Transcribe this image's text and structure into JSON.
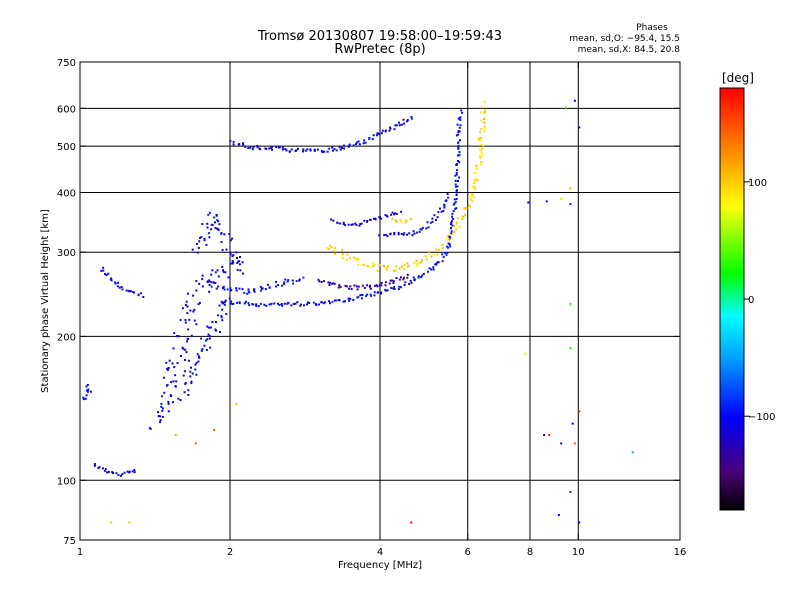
{
  "chart_data": {
    "type": "scatter",
    "title": "Tromsø 20130807 19:58:00–19:59:43",
    "subtitle": "RwPretec (8p)",
    "xlabel": "Frequency [MHz]",
    "ylabel": "Stationary phase Virtual Height [km]",
    "x_scale": "log",
    "y_scale": "log",
    "xlim": [
      1,
      16
    ],
    "ylim": [
      75,
      750
    ],
    "x_ticks": [
      1,
      2,
      4,
      6,
      8,
      10,
      16
    ],
    "y_ticks": [
      75,
      100,
      200,
      300,
      400,
      500,
      600,
      750
    ],
    "grid_x": [
      2,
      4,
      6,
      8,
      10
    ],
    "grid_y": [
      100,
      200,
      300,
      400,
      500,
      600
    ],
    "grid": true,
    "stats": {
      "heading": "Phases",
      "line1": "mean, sd,O: −95.4, 15.5",
      "line2": "mean, sd,X:  84.5, 20.8"
    },
    "colorbar": {
      "label": "[deg]",
      "range": [
        -180,
        180
      ],
      "ticks": [
        100,
        0,
        -100
      ],
      "tick_labels": [
        "100",
        "0",
        "−100"
      ]
    },
    "series_description": "points colored by phase (deg)",
    "traces": [
      {
        "phase": -105,
        "spread": 2,
        "points": [
          [
            1.01,
            148
          ],
          [
            1.02,
            152
          ],
          [
            1.04,
            155
          ],
          [
            1.02,
            160
          ]
        ]
      },
      {
        "phase": -105,
        "spread": 2,
        "points": [
          [
            1.06,
            108
          ],
          [
            1.1,
            106
          ],
          [
            1.15,
            104
          ],
          [
            1.2,
            103
          ],
          [
            1.25,
            105
          ],
          [
            1.3,
            106
          ]
        ]
      },
      {
        "phase": -105,
        "spread": 2,
        "points": [
          [
            1.1,
            280
          ],
          [
            1.15,
            265
          ],
          [
            1.2,
            255
          ],
          [
            1.25,
            248
          ],
          [
            1.3,
            246
          ],
          [
            1.35,
            245
          ]
        ]
      },
      {
        "phase": -105,
        "spread": 8,
        "points": [
          [
            1.4,
            130
          ],
          [
            1.45,
            140
          ],
          [
            1.5,
            160
          ],
          [
            1.55,
            180
          ],
          [
            1.6,
            200
          ],
          [
            1.65,
            220
          ],
          [
            1.7,
            240
          ],
          [
            1.75,
            255
          ],
          [
            1.8,
            265
          ],
          [
            1.85,
            270
          ],
          [
            1.9,
            275
          ],
          [
            1.95,
            280
          ],
          [
            2.0,
            282
          ],
          [
            2.05,
            283
          ],
          [
            2.1,
            280
          ]
        ]
      },
      {
        "phase": -105,
        "spread": 6,
        "points": [
          [
            1.6,
            150
          ],
          [
            1.65,
            165
          ],
          [
            1.7,
            180
          ],
          [
            1.75,
            190
          ],
          [
            1.8,
            200
          ],
          [
            1.85,
            210
          ],
          [
            1.9,
            225
          ],
          [
            1.95,
            240
          ]
        ]
      },
      {
        "phase": -105,
        "spread": 6,
        "points": [
          [
            1.7,
            300
          ],
          [
            1.75,
            320
          ],
          [
            1.8,
            340
          ],
          [
            1.85,
            360
          ],
          [
            1.9,
            340
          ],
          [
            1.95,
            320
          ],
          [
            2.0,
            300
          ],
          [
            2.05,
            290
          ],
          [
            2.1,
            285
          ],
          [
            2.15,
            275
          ]
        ]
      },
      {
        "phase": -100,
        "spread": 3,
        "points": [
          [
            1.8,
            260
          ],
          [
            1.9,
            255
          ],
          [
            2.0,
            252
          ],
          [
            2.1,
            250
          ],
          [
            2.2,
            250
          ],
          [
            2.3,
            252
          ],
          [
            2.4,
            256
          ],
          [
            2.5,
            260
          ],
          [
            2.6,
            262
          ],
          [
            2.7,
            263
          ],
          [
            2.8,
            265
          ]
        ]
      },
      {
        "phase": -100,
        "spread": 2,
        "points": [
          [
            1.9,
            238
          ],
          [
            2.0,
            236
          ],
          [
            2.2,
            235
          ],
          [
            2.4,
            234
          ],
          [
            2.6,
            235
          ],
          [
            2.8,
            235
          ],
          [
            3.0,
            236
          ],
          [
            3.2,
            238
          ],
          [
            3.4,
            240
          ],
          [
            3.6,
            242
          ],
          [
            3.8,
            245
          ],
          [
            4.0,
            248
          ],
          [
            4.2,
            252
          ],
          [
            4.4,
            256
          ],
          [
            4.6,
            262
          ],
          [
            4.8,
            268
          ],
          [
            5.0,
            275
          ],
          [
            5.2,
            285
          ],
          [
            5.4,
            300
          ],
          [
            5.5,
            320
          ],
          [
            5.6,
            360
          ],
          [
            5.65,
            400
          ],
          [
            5.7,
            450
          ],
          [
            5.72,
            500
          ],
          [
            5.75,
            560
          ],
          [
            5.78,
            600
          ]
        ]
      },
      {
        "phase": -130,
        "spread": 2,
        "points": [
          [
            3.0,
            262
          ],
          [
            3.2,
            258
          ],
          [
            3.4,
            255
          ],
          [
            3.6,
            254
          ],
          [
            3.8,
            255
          ],
          [
            4.0,
            258
          ],
          [
            4.2,
            262
          ],
          [
            4.4,
            266
          ],
          [
            4.6,
            270
          ]
        ]
      },
      {
        "phase": -105,
        "spread": 2,
        "points": [
          [
            2.0,
            510
          ],
          [
            2.1,
            505
          ],
          [
            2.2,
            500
          ],
          [
            2.5,
            495
          ],
          [
            2.8,
            492
          ],
          [
            3.0,
            492
          ],
          [
            3.2,
            495
          ],
          [
            3.4,
            500
          ],
          [
            3.6,
            510
          ],
          [
            3.8,
            520
          ],
          [
            4.0,
            535
          ],
          [
            4.2,
            548
          ],
          [
            4.4,
            562
          ],
          [
            4.6,
            575
          ],
          [
            4.7,
            580
          ]
        ]
      },
      {
        "phase": -110,
        "spread": 2,
        "points": [
          [
            3.2,
            350
          ],
          [
            3.4,
            345
          ],
          [
            3.6,
            345
          ],
          [
            3.8,
            350
          ],
          [
            4.0,
            355
          ],
          [
            4.2,
            362
          ],
          [
            4.4,
            368
          ]
        ]
      },
      {
        "phase": -105,
        "spread": 2,
        "points": [
          [
            4.0,
            330
          ],
          [
            4.2,
            328
          ],
          [
            4.4,
            328
          ],
          [
            4.6,
            330
          ],
          [
            4.8,
            335
          ],
          [
            5.0,
            345
          ],
          [
            5.2,
            360
          ],
          [
            5.4,
            380
          ],
          [
            5.5,
            400
          ]
        ]
      },
      {
        "phase": 95,
        "spread": 3,
        "points": [
          [
            3.1,
            310
          ],
          [
            3.3,
            300
          ],
          [
            3.5,
            292
          ],
          [
            3.7,
            285
          ],
          [
            3.9,
            280
          ],
          [
            4.1,
            278
          ],
          [
            4.3,
            279
          ],
          [
            4.5,
            282
          ],
          [
            4.7,
            286
          ],
          [
            4.9,
            292
          ],
          [
            5.1,
            300
          ],
          [
            5.3,
            310
          ],
          [
            5.5,
            325
          ],
          [
            5.7,
            345
          ],
          [
            5.9,
            370
          ],
          [
            6.1,
            400
          ],
          [
            6.2,
            430
          ],
          [
            6.3,
            470
          ],
          [
            6.35,
            520
          ],
          [
            6.4,
            580
          ],
          [
            6.45,
            620
          ]
        ]
      },
      {
        "phase": 100,
        "spread": 2,
        "points": [
          [
            4.2,
            355
          ],
          [
            4.4,
            350
          ],
          [
            4.6,
            352
          ]
        ]
      }
    ],
    "scatter_points": [
      {
        "x": 9.4,
        "y": 605,
        "phase": 40
      },
      {
        "x": 9.6,
        "y": 410,
        "phase": 110
      },
      {
        "x": 9.2,
        "y": 390,
        "phase": 95
      },
      {
        "x": 9.6,
        "y": 380,
        "phase": -120
      },
      {
        "x": 8.6,
        "y": 385,
        "phase": -105
      },
      {
        "x": 9.6,
        "y": 235,
        "phase": 30
      },
      {
        "x": 9.6,
        "y": 190,
        "phase": 30
      },
      {
        "x": 7.8,
        "y": 185,
        "phase": 90
      },
      {
        "x": 9.7,
        "y": 132,
        "phase": -115
      },
      {
        "x": 9.8,
        "y": 120,
        "phase": 150
      },
      {
        "x": 10.0,
        "y": 140,
        "phase": 160
      },
      {
        "x": 12.8,
        "y": 115,
        "phase": -50
      },
      {
        "x": 8.5,
        "y": 125,
        "phase": -120
      },
      {
        "x": 8.7,
        "y": 125,
        "phase": 170
      },
      {
        "x": 9.2,
        "y": 120,
        "phase": -120
      },
      {
        "x": 9.6,
        "y": 95,
        "phase": -145
      },
      {
        "x": 9.1,
        "y": 85,
        "phase": -110
      },
      {
        "x": 10.0,
        "y": 82,
        "phase": -110
      },
      {
        "x": 4.6,
        "y": 82,
        "phase": 175
      },
      {
        "x": 1.15,
        "y": 82,
        "phase": 100
      },
      {
        "x": 1.25,
        "y": 82,
        "phase": 100
      },
      {
        "x": 2.05,
        "y": 145,
        "phase": 100
      },
      {
        "x": 1.85,
        "y": 128,
        "phase": 140
      },
      {
        "x": 1.7,
        "y": 120,
        "phase": 150
      },
      {
        "x": 1.55,
        "y": 125,
        "phase": 110
      },
      {
        "x": 10.0,
        "y": 550,
        "phase": -125
      },
      {
        "x": 9.8,
        "y": 625,
        "phase": -110
      },
      {
        "x": 7.9,
        "y": 383,
        "phase": -105
      }
    ]
  }
}
